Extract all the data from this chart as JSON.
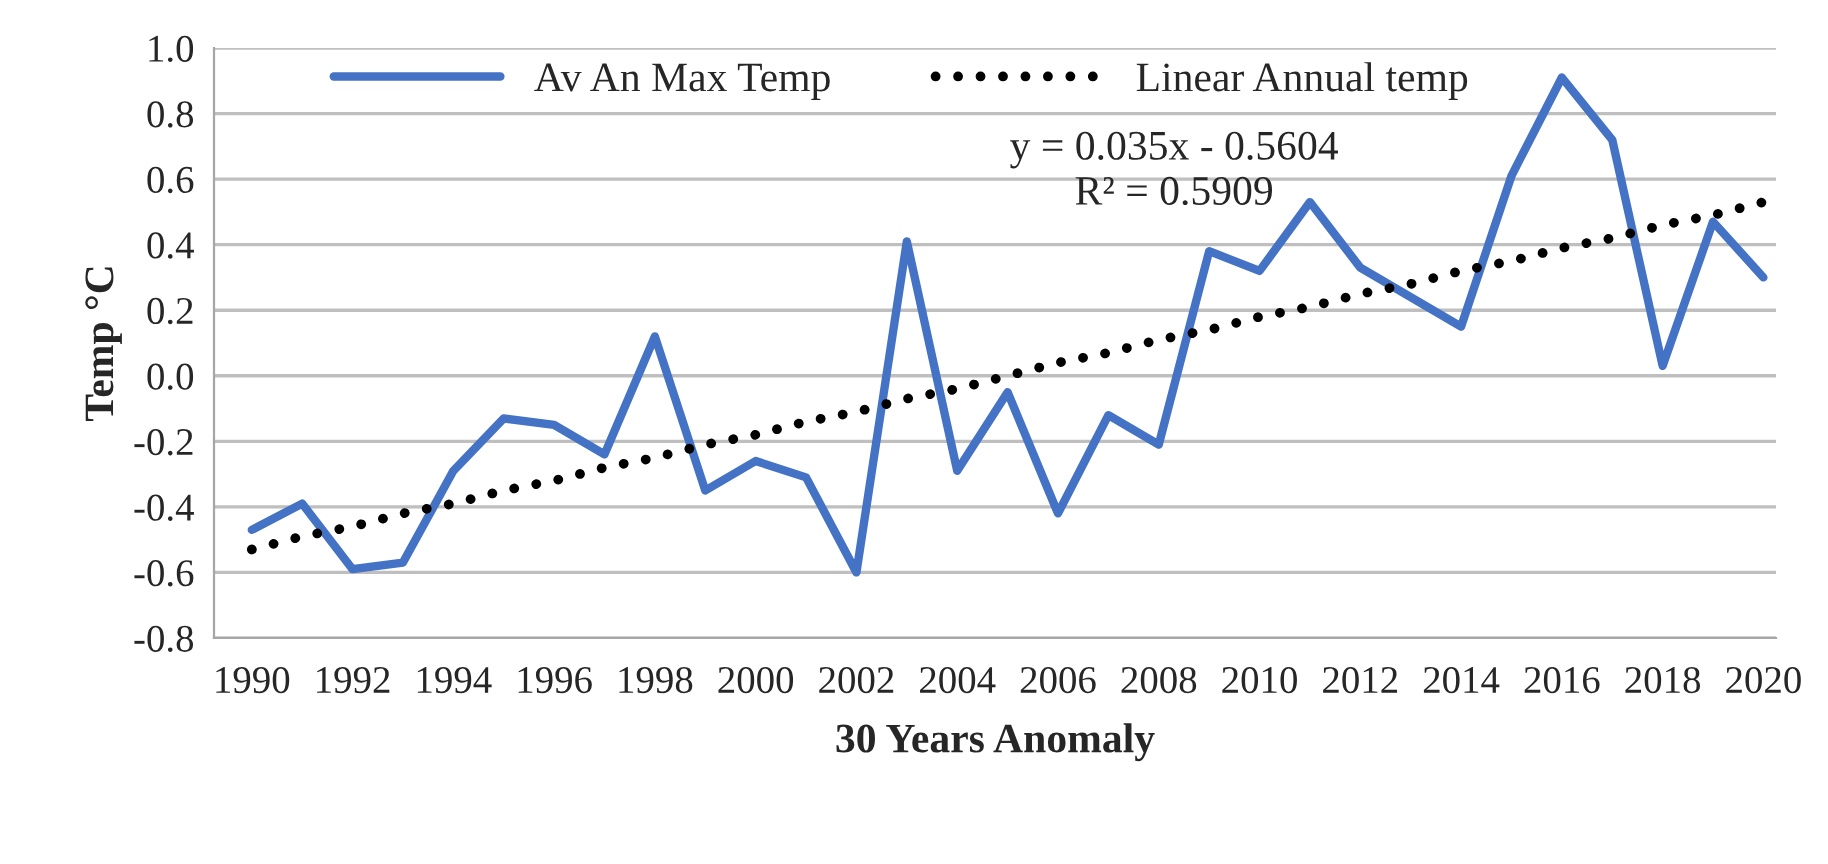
{
  "chart_data": {
    "type": "line",
    "xlabel": "30 Years Anomaly",
    "ylabel": "Temp °C",
    "categories": [
      "1990",
      null,
      "1992",
      null,
      "1994",
      null,
      "1996",
      null,
      "1998",
      null,
      "2000",
      null,
      "2002",
      null,
      "2004",
      null,
      "2006",
      null,
      "2008",
      null,
      "2010",
      null,
      "2012",
      null,
      "2014",
      null,
      "2016",
      null,
      "2018",
      null,
      "2020"
    ],
    "series": [
      {
        "name": "Av An Max Temp",
        "color": "#4472c4",
        "line_style": "solid",
        "values": [
          -0.47,
          -0.39,
          -0.59,
          -0.57,
          -0.29,
          -0.13,
          -0.15,
          -0.24,
          0.12,
          -0.35,
          -0.26,
          -0.31,
          -0.6,
          0.41,
          -0.29,
          -0.05,
          -0.42,
          -0.12,
          -0.21,
          0.38,
          0.32,
          0.53,
          0.33,
          0.24,
          0.15,
          0.61,
          0.91,
          0.72,
          0.03,
          0.47,
          0.3
        ]
      },
      {
        "name": "Linear Annual temp",
        "color": "#000000",
        "line_style": "dotted",
        "values": [
          -0.53,
          -0.49,
          -0.46,
          -0.42,
          -0.39,
          -0.35,
          -0.32,
          -0.28,
          -0.25,
          -0.21,
          -0.18,
          -0.14,
          -0.11,
          -0.07,
          -0.04,
          0.0,
          0.04,
          0.07,
          0.11,
          0.14,
          0.18,
          0.21,
          0.25,
          0.28,
          0.32,
          0.35,
          0.39,
          0.42,
          0.46,
          0.49,
          0.53
        ]
      }
    ],
    "annotations": [
      "y = 0.035x - 0.5604\nR² = 0.5909"
    ],
    "ylim": [
      -0.8,
      1.0
    ],
    "yticks": [
      {
        "value": -0.8,
        "label": "-0.8"
      },
      {
        "value": -0.6,
        "label": "-0.6"
      },
      {
        "value": -0.4,
        "label": "-0.4"
      },
      {
        "value": -0.2,
        "label": "-0.2"
      },
      {
        "value": 0.0,
        "label": "0.0"
      },
      {
        "value": 0.2,
        "label": "0.2"
      },
      {
        "value": 0.4,
        "label": "0.4"
      },
      {
        "value": 0.6,
        "label": "0.6"
      },
      {
        "value": 0.8,
        "label": "0.8"
      },
      {
        "value": 1.0,
        "label": "1.0"
      }
    ],
    "grid": "y",
    "legend": "top",
    "marker": "none"
  }
}
